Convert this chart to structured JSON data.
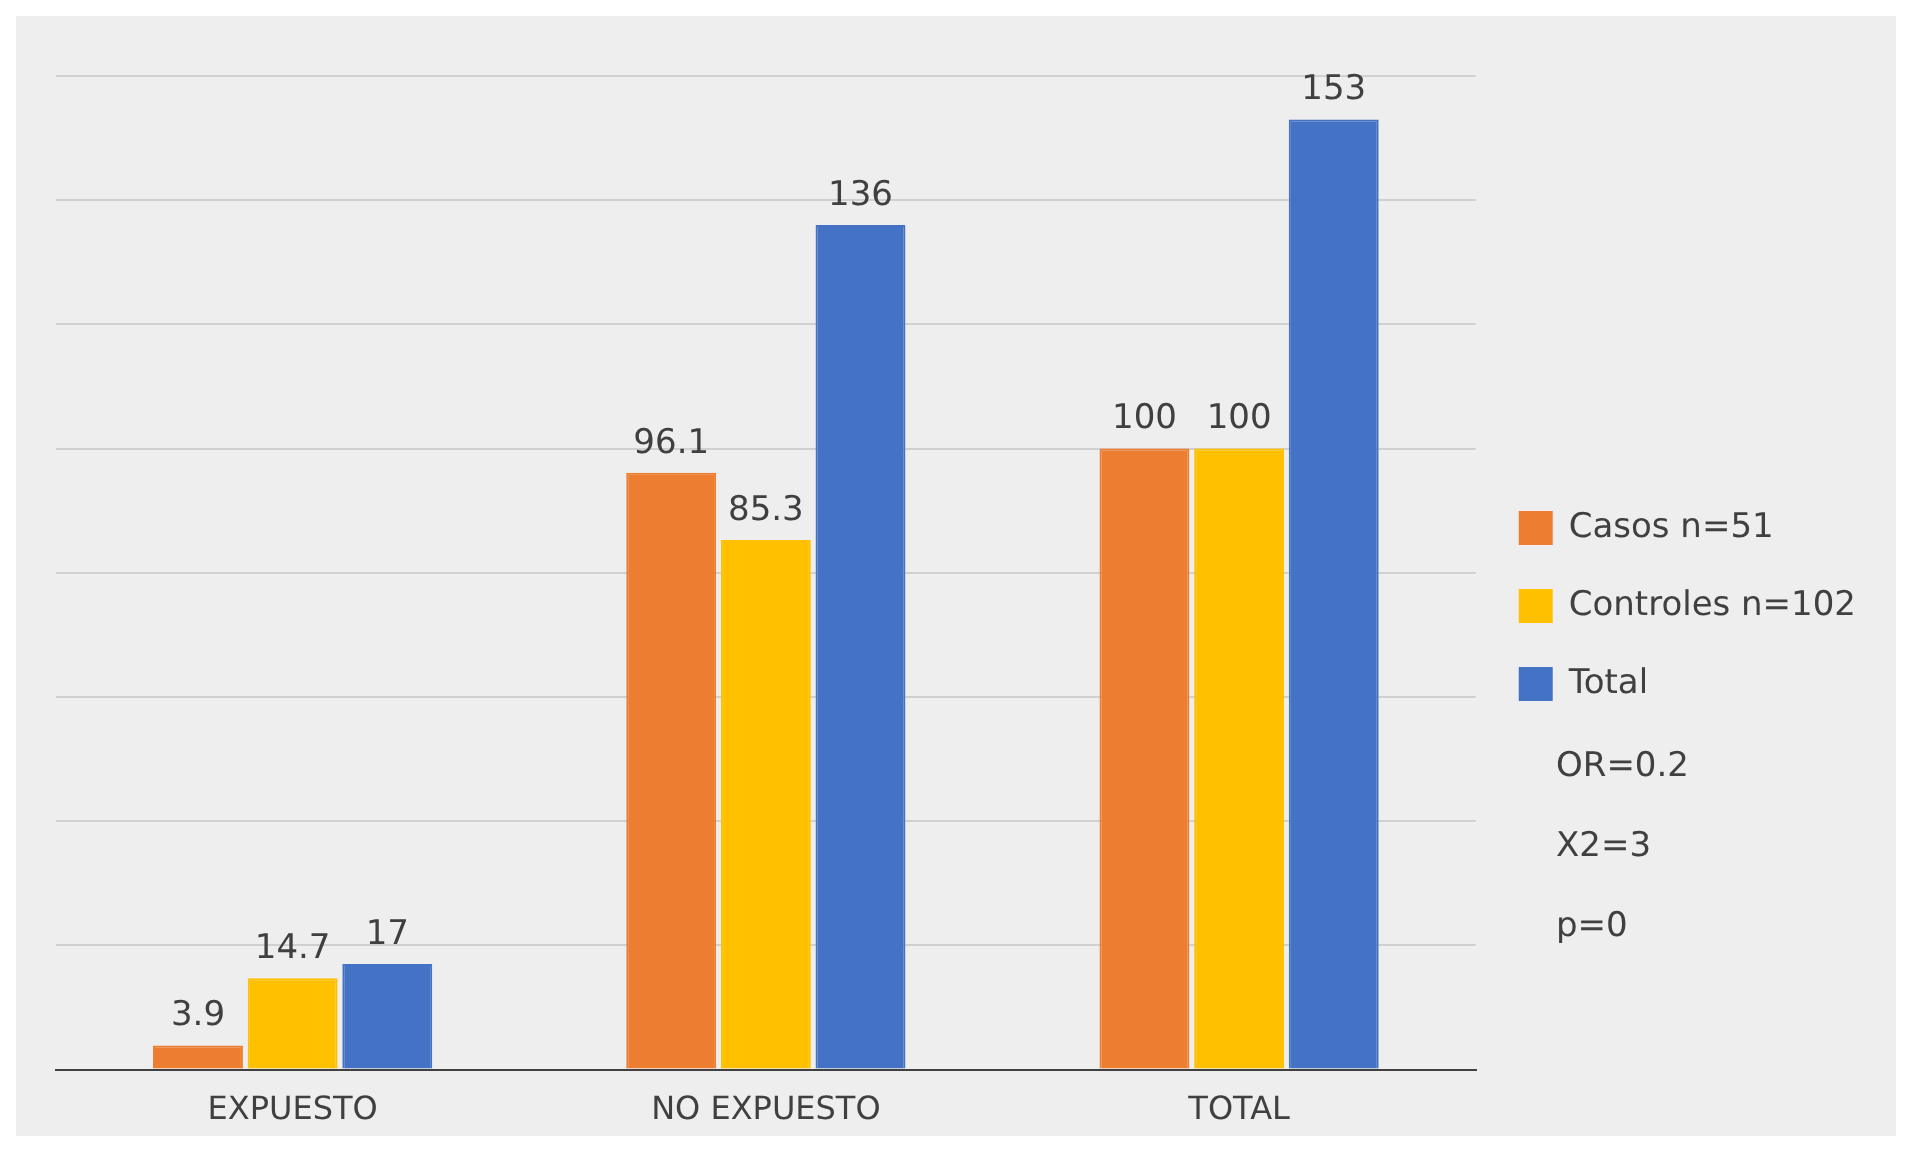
{
  "chart_data": {
    "type": "bar",
    "categories": [
      "EXPUESTO",
      "NO EXPUESTO",
      "TOTAL"
    ],
    "series": [
      {
        "name": "Casos n=51",
        "color": "#ed7d31",
        "values": [
          3.9,
          96.1,
          100
        ]
      },
      {
        "name": "Controles n=102",
        "color": "#ffc000",
        "values": [
          14.7,
          85.3,
          100
        ]
      },
      {
        "name": "Total",
        "color": "#4472c4",
        "values": [
          17,
          136,
          153
        ]
      }
    ],
    "ylim": [
      0,
      160
    ],
    "grid": "y",
    "legend": "right",
    "data_labels": true,
    "annotations": [
      "OR=0.2",
      "X2=3",
      "p=0"
    ]
  }
}
